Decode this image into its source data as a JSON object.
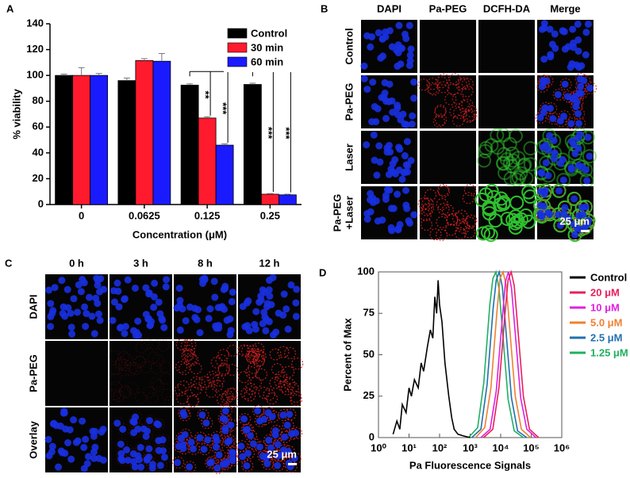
{
  "chart_data": [
    {
      "type": "bar",
      "panel_label": "A",
      "x_label": "Concentration (μM)",
      "y_label": "% viability",
      "categories": [
        "0",
        "0.0625",
        "0.125",
        "0.25"
      ],
      "series": [
        {
          "name": "Control",
          "color": "#000000",
          "values": [
            100,
            96,
            92.5,
            93
          ],
          "errors": [
            1,
            2,
            1,
            1
          ]
        },
        {
          "name": "30 min",
          "color": "#ff1a2e",
          "values": [
            100,
            111.5,
            67,
            8
          ],
          "errors": [
            6,
            1.5,
            1,
            0.5
          ]
        },
        {
          "name": "60 min",
          "color": "#1a1aff",
          "values": [
            100,
            111,
            46,
            7.5
          ],
          "errors": [
            1.5,
            6,
            1,
            0.5
          ]
        }
      ],
      "ylim": [
        0,
        140
      ],
      "yticks": [
        0,
        20,
        40,
        60,
        80,
        100,
        120,
        140
      ],
      "legend": "upper right",
      "annotations": [
        "**",
        "***",
        "***",
        "***"
      ]
    },
    {
      "type": "line",
      "panel_label": "D",
      "x_label": "Pa Fluorescence Signals",
      "y_label": "Percent of Max",
      "xscale": "log",
      "xlim": [
        1,
        1000000
      ],
      "xticks": [
        {
          "value": 1,
          "label": "10⁰"
        },
        {
          "value": 10,
          "label": "10¹"
        },
        {
          "value": 100,
          "label": "10²"
        },
        {
          "value": 1000,
          "label": "10³"
        },
        {
          "value": 10000,
          "label": "10⁴"
        },
        {
          "value": 100000,
          "label": "10⁵"
        },
        {
          "value": 1000000,
          "label": "10⁶"
        }
      ],
      "ylim": [
        0,
        100
      ],
      "yticks": [
        0,
        25,
        50,
        75,
        100
      ],
      "legend": "right",
      "series": [
        {
          "name": "Control",
          "color": "#000000",
          "x": [
            3,
            4,
            5,
            6,
            8,
            10,
            12,
            15,
            20,
            25,
            30,
            40,
            50,
            60,
            70,
            80,
            90,
            100,
            120,
            150,
            200,
            250,
            300,
            400,
            600,
            1000
          ],
          "values": [
            2,
            10,
            5,
            20,
            15,
            30,
            25,
            35,
            30,
            45,
            40,
            55,
            65,
            60,
            85,
            75,
            95,
            80,
            70,
            45,
            25,
            12,
            5,
            2,
            1,
            0
          ]
        },
        {
          "name": "20 μM",
          "color": "#e8205a",
          "x": [
            2770,
            5530,
            8770,
            13890,
            17470,
            22000,
            27690,
            34860,
            55250,
            87560,
            174700
          ],
          "values": [
            0,
            5,
            30,
            75,
            95,
            100,
            92,
            70,
            25,
            5,
            0
          ]
        },
        {
          "name": "10 μM",
          "color": "#e020e0",
          "x": [
            2260,
            4520,
            7170,
            11360,
            14290,
            18000,
            22650,
            28520,
            45210,
            71640,
            142940
          ],
          "values": [
            0,
            5,
            28,
            72,
            94,
            100,
            90,
            68,
            24,
            5,
            0
          ]
        },
        {
          "name": "5.0 μM",
          "color": "#f08030",
          "x": [
            1510,
            3010,
            4780,
            7570,
            9530,
            12000,
            15100,
            19010,
            30140,
            47760,
            95300
          ],
          "values": [
            0,
            6,
            30,
            76,
            96,
            100,
            92,
            70,
            25,
            5,
            0
          ]
        },
        {
          "name": "2.5 μM",
          "color": "#2070b0",
          "x": [
            1130,
            2260,
            3590,
            5680,
            7150,
            9000,
            11330,
            14260,
            22610,
            35820,
            71470
          ],
          "values": [
            0,
            5,
            32,
            78,
            95,
            100,
            91,
            69,
            24,
            4,
            0
          ]
        },
        {
          "name": "1.25 μM",
          "color": "#20b060",
          "x": [
            880,
            1760,
            2790,
            4420,
            5560,
            7000,
            8810,
            11090,
            17580,
            27860,
            55590
          ],
          "values": [
            0,
            6,
            33,
            80,
            96,
            100,
            90,
            68,
            23,
            4,
            0
          ]
        }
      ]
    }
  ],
  "image_panels": [
    {
      "panel_label": "B",
      "columns": [
        "DAPI",
        "Pa-PEG",
        "DCFH-DA",
        "Merge"
      ],
      "rows": [
        [
          "Control"
        ],
        [
          "Pa-PEG"
        ],
        [
          "Laser"
        ],
        [
          "Pa-PEG",
          "+Laser"
        ]
      ],
      "scale_bar": "25 μm"
    },
    {
      "panel_label": "C",
      "columns": [
        "0 h",
        "3 h",
        "8 h",
        "12 h"
      ],
      "rows": [
        [
          "DAPI"
        ],
        [
          "Pa-PEG"
        ],
        [
          "Overlay"
        ]
      ],
      "scale_bar": "25 μm"
    }
  ]
}
